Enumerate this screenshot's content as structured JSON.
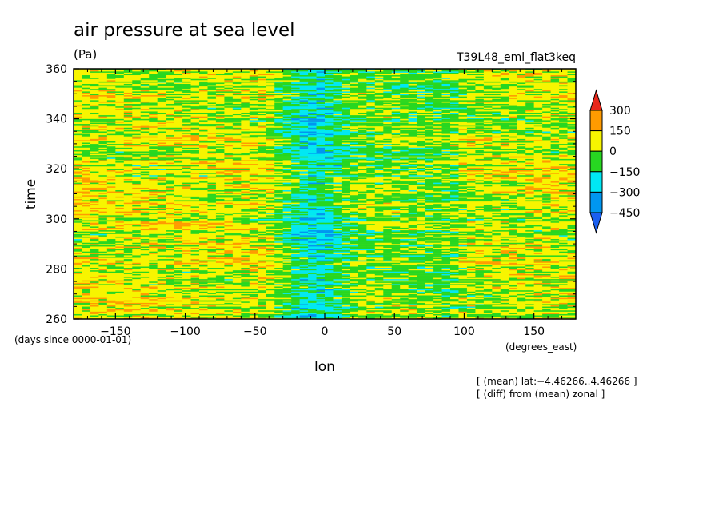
{
  "chart_data": {
    "type": "heatmap",
    "title": "air pressure at sea level",
    "units": "(Pa)",
    "run_label": "T39L48_eml_flat3keq",
    "xlabel": "lon",
    "ylabel": "time",
    "x_units_note": "(degrees_east)",
    "y_units_note": "(days since 0000-01-01)",
    "xlim": [
      -180,
      180
    ],
    "ylim": [
      260,
      360
    ],
    "x_ticks": [
      -150,
      -100,
      -50,
      0,
      50,
      100,
      150
    ],
    "x_tick_labels": [
      "−150",
      "−100",
      "−50",
      "0",
      "50",
      "100",
      "150"
    ],
    "y_ticks": [
      260,
      280,
      300,
      320,
      340,
      360
    ],
    "y_tick_labels": [
      "260",
      "280",
      "300",
      "320",
      "340",
      "360"
    ],
    "colorbar": {
      "levels": [
        300,
        150,
        0,
        -150,
        -300,
        -450
      ],
      "labels": [
        "300",
        "150",
        "0",
        "−150",
        "−300",
        "−450"
      ],
      "colors": [
        "#e8271a",
        "#ff9b00",
        "#f7f500",
        "#27d721",
        "#00e8f4",
        "#0096f0",
        "#1a5ff0"
      ],
      "bands": [
        {
          "range": "> 300",
          "color": "#e8271a"
        },
        {
          "range": "150 to 300",
          "color": "#ff9b00"
        },
        {
          "range": "0 to 150",
          "color": "#f7f500"
        },
        {
          "range": "-150 to 0",
          "color": "#27d721"
        },
        {
          "range": "-300 to -150",
          "color": "#00e8f4"
        },
        {
          "range": "-450 to -300",
          "color": "#0096f0"
        },
        {
          "range": "< -450",
          "color": "#1a5ff0"
        }
      ]
    },
    "pattern_description": [
      {
        "lon_range": [
          -180,
          -40
        ],
        "dominant_values": "0 to 150"
      },
      {
        "lon_range": [
          -40,
          20
        ],
        "dominant_values": "-300 to -150 and -150 to 0"
      },
      {
        "lon_range": [
          20,
          100
        ],
        "dominant_values": "-150 to 0 and 0 to 150"
      },
      {
        "lon_range": [
          100,
          180
        ],
        "dominant_values": "0 to 150"
      }
    ],
    "annotations": [
      "[ (mean) lat:−4.46266..4.46266 ]",
      "[ (diff) from (mean) zonal ]"
    ]
  }
}
